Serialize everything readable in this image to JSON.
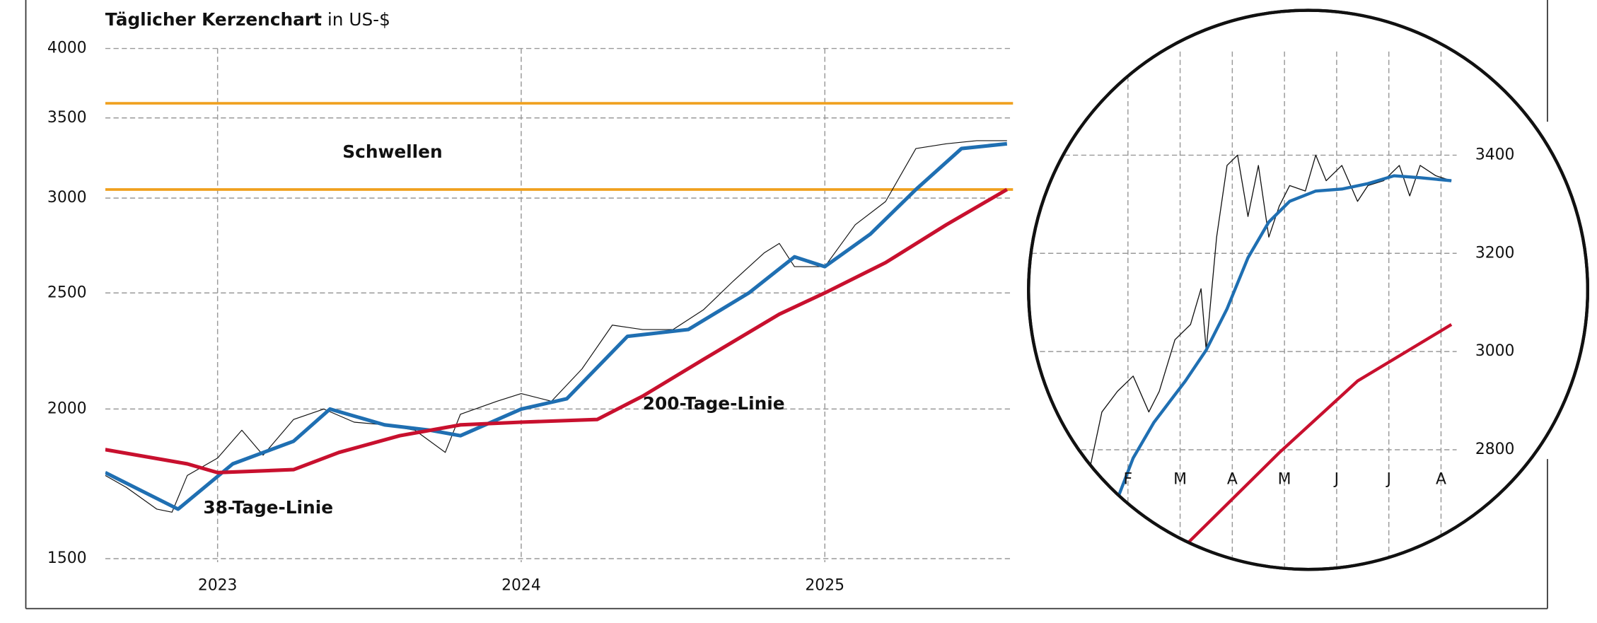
{
  "chart_data": [
    {
      "type": "line",
      "title": "Täglicher Kerzenchart",
      "unit_label": "in US-$",
      "log_y": true,
      "grid": true,
      "xlim": [
        2022.63,
        2025.62
      ],
      "xticks": [
        2023,
        2024,
        2025
      ],
      "ylim": [
        1490,
        4000
      ],
      "yticks": [
        1500,
        2000,
        2500,
        3000,
        3500,
        4000
      ],
      "thresholds": {
        "label": "Schwellen",
        "color": "#f0a01e",
        "values": [
          3050,
          3600
        ]
      },
      "series": [
        {
          "color": "#111111",
          "x": [
            2022.63,
            2022.7,
            2022.8,
            2022.85,
            2022.9,
            2023.0,
            2023.08,
            2023.15,
            2023.25,
            2023.35,
            2023.45,
            2023.55,
            2023.65,
            2023.75,
            2023.8,
            2023.92,
            2024.0,
            2024.1,
            2024.2,
            2024.3,
            2024.4,
            2024.5,
            2024.6,
            2024.7,
            2024.8,
            2024.85,
            2024.9,
            2025.0,
            2025.1,
            2025.2,
            2025.3,
            2025.4,
            2025.5,
            2025.6
          ],
          "values": [
            1760,
            1720,
            1650,
            1640,
            1760,
            1820,
            1920,
            1830,
            1960,
            2000,
            1950,
            1940,
            1920,
            1840,
            1980,
            2030,
            2060,
            2030,
            2160,
            2350,
            2330,
            2330,
            2420,
            2560,
            2700,
            2750,
            2630,
            2630,
            2850,
            2980,
            3300,
            3330,
            3350,
            3350
          ]
        },
        {
          "name": "38-Tage-Linie",
          "color": "#1f6fb2",
          "x": [
            2022.63,
            2022.87,
            2023.05,
            2023.25,
            2023.37,
            2023.55,
            2023.7,
            2023.8,
            2024.0,
            2024.15,
            2024.35,
            2024.55,
            2024.75,
            2024.9,
            2025.0,
            2025.15,
            2025.3,
            2025.45,
            2025.6
          ],
          "values": [
            1770,
            1650,
            1800,
            1880,
            2000,
            1940,
            1920,
            1900,
            2000,
            2040,
            2300,
            2330,
            2500,
            2680,
            2630,
            2800,
            3050,
            3300,
            3330
          ]
        },
        {
          "name": "200-Tage-Linie",
          "color": "#c8102e",
          "x": [
            2022.63,
            2022.9,
            2023.0,
            2023.25,
            2023.4,
            2023.6,
            2023.8,
            2024.0,
            2024.25,
            2024.4,
            2024.6,
            2024.85,
            2025.0,
            2025.2,
            2025.4,
            2025.6
          ],
          "values": [
            1850,
            1800,
            1770,
            1780,
            1840,
            1900,
            1940,
            1950,
            1960,
            2050,
            2200,
            2400,
            2500,
            2650,
            2850,
            3050
          ]
        }
      ]
    },
    {
      "type": "line",
      "grid": true,
      "xlim": [
        1.05,
        8.8
      ],
      "xticks": [
        {
          "value": 2.5,
          "label": "F"
        },
        {
          "value": 3.5,
          "label": "M"
        },
        {
          "value": 4.5,
          "label": "A"
        },
        {
          "value": 5.5,
          "label": "M"
        },
        {
          "value": 6.5,
          "label": "J"
        },
        {
          "value": 7.5,
          "label": "J"
        },
        {
          "value": 8.5,
          "label": "A"
        }
      ],
      "ylim": [
        2550,
        3590
      ],
      "yticks": [
        2800,
        3000,
        3200,
        3400
      ],
      "series": [
        {
          "color": "#111111",
          "x": [
            1.75,
            2.0,
            2.3,
            2.6,
            2.9,
            3.1,
            3.4,
            3.7,
            3.9,
            4.0,
            4.2,
            4.4,
            4.6,
            4.8,
            5.0,
            5.2,
            5.4,
            5.6,
            5.9,
            6.1,
            6.3,
            6.6,
            6.9,
            7.1,
            7.4,
            7.7,
            7.9,
            8.1,
            8.4,
            8.7
          ],
          "values": [
            2752,
            2877,
            2919,
            2950,
            2877,
            2919,
            3024,
            3055,
            3128,
            3003,
            3233,
            3379,
            3400,
            3275,
            3379,
            3233,
            3296,
            3338,
            3327,
            3400,
            3348,
            3379,
            3306,
            3338,
            3348,
            3379,
            3317,
            3379,
            3358,
            3348
          ]
        },
        {
          "color": "#1f6fb2",
          "x": [
            2.3,
            2.6,
            3.0,
            3.6,
            4.0,
            4.4,
            4.8,
            5.2,
            5.6,
            6.1,
            6.6,
            7.1,
            7.6,
            8.1,
            8.7
          ],
          "values": [
            2700,
            2783,
            2856,
            2940,
            3003,
            3087,
            3191,
            3264,
            3306,
            3327,
            3331,
            3342,
            3358,
            3354,
            3348
          ]
        },
        {
          "color": "#c8102e",
          "x": [
            3.6,
            5.4,
            6.9,
            8.7
          ],
          "values": [
            2605,
            2794,
            2940,
            3055
          ]
        }
      ]
    }
  ]
}
